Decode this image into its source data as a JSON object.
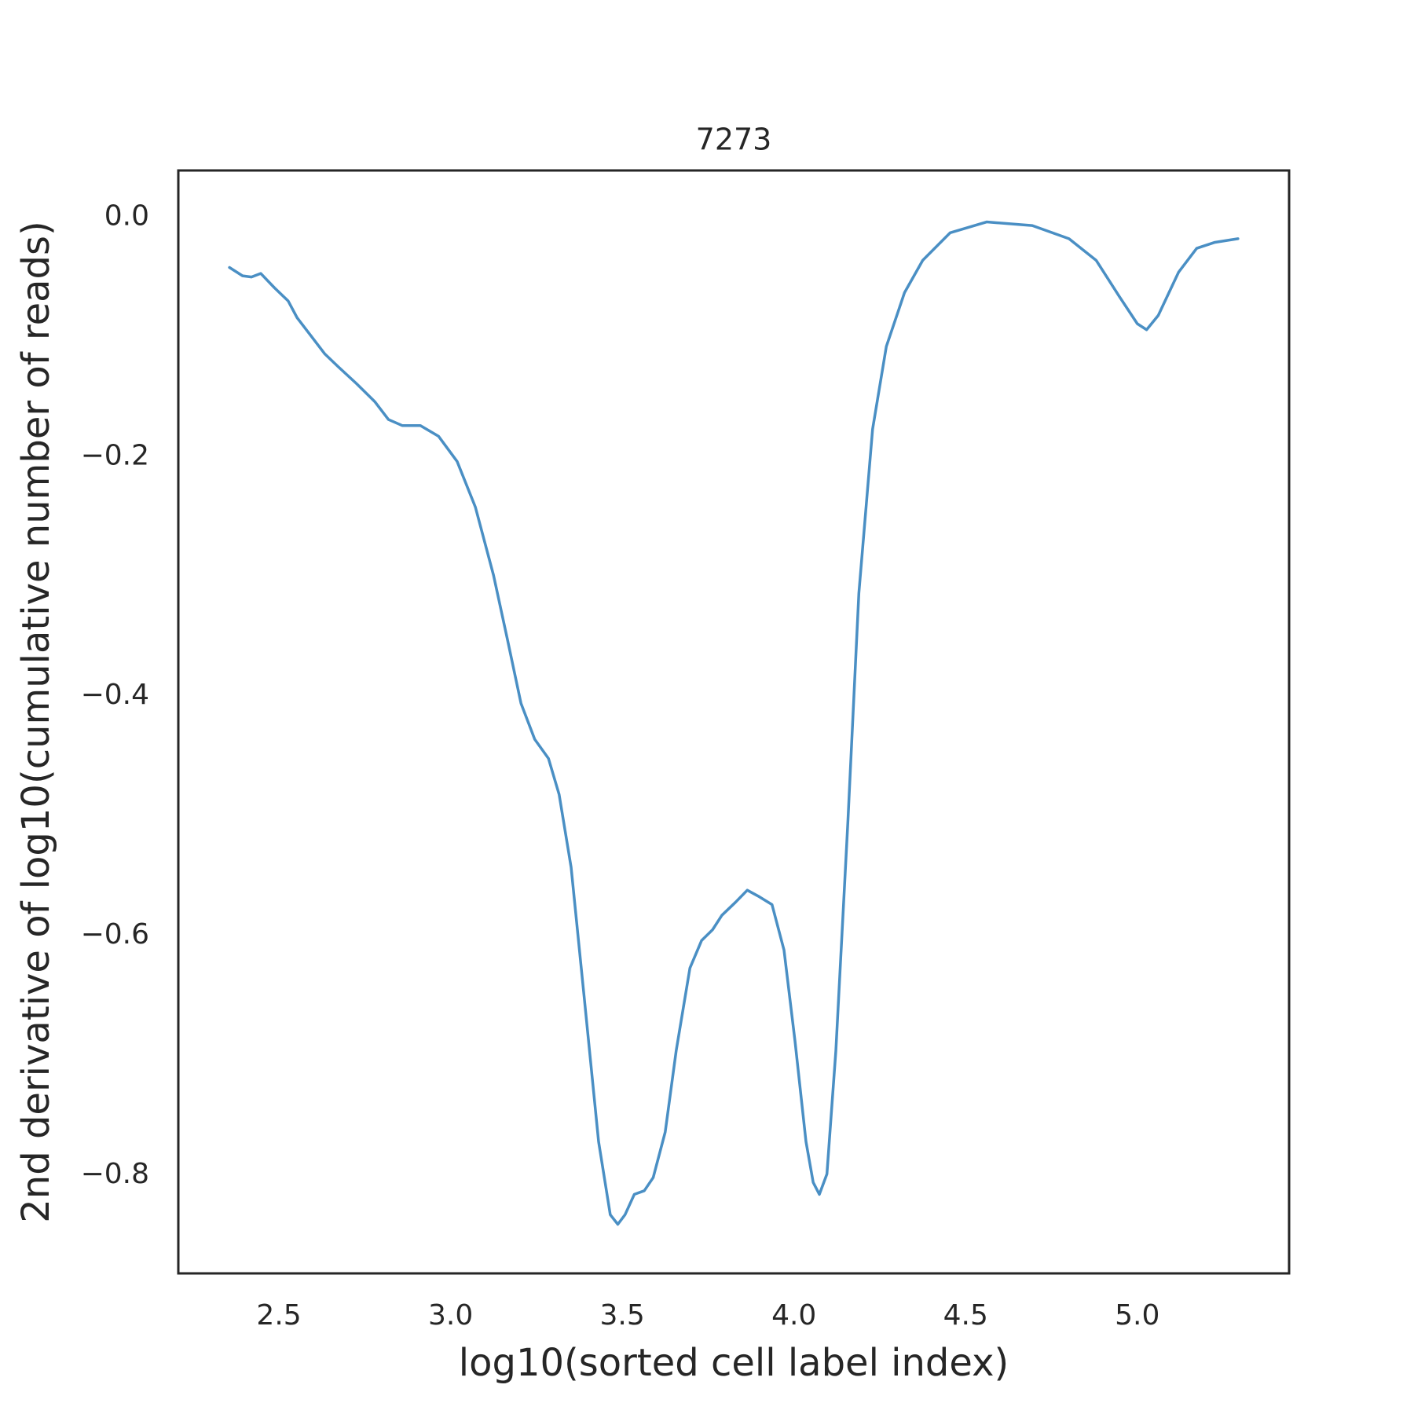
{
  "chart_data": {
    "type": "line",
    "title": "7273",
    "x_label": "log10(sorted cell label index)",
    "y_label": "2nd derivative of log10(cumulative number of reads)",
    "x": [
      2.356,
      2.394,
      2.42,
      2.447,
      2.487,
      2.527,
      2.553,
      2.593,
      2.633,
      2.673,
      2.726,
      2.779,
      2.819,
      2.859,
      2.912,
      2.965,
      3.019,
      3.072,
      3.125,
      3.165,
      3.205,
      3.245,
      3.285,
      3.316,
      3.351,
      3.391,
      3.431,
      3.465,
      3.487,
      3.508,
      3.535,
      3.564,
      3.59,
      3.625,
      3.657,
      3.697,
      3.731,
      3.763,
      3.79,
      3.83,
      3.864,
      3.896,
      3.936,
      3.971,
      4.003,
      4.035,
      4.056,
      4.074,
      4.096,
      4.122,
      4.157,
      4.189,
      4.229,
      4.269,
      4.322,
      4.375,
      4.455,
      4.561,
      4.694,
      4.801,
      4.88,
      4.947,
      5.0,
      5.027,
      5.061,
      5.12,
      5.173,
      5.226,
      5.293
    ],
    "values": [
      -0.042,
      -0.049,
      -0.05,
      -0.047,
      -0.059,
      -0.07,
      -0.084,
      -0.099,
      -0.114,
      -0.125,
      -0.139,
      -0.154,
      -0.169,
      -0.174,
      -0.174,
      -0.183,
      -0.204,
      -0.242,
      -0.299,
      -0.352,
      -0.406,
      -0.436,
      -0.452,
      -0.482,
      -0.543,
      -0.657,
      -0.772,
      -0.833,
      -0.841,
      -0.833,
      -0.816,
      -0.813,
      -0.802,
      -0.764,
      -0.696,
      -0.627,
      -0.604,
      -0.595,
      -0.583,
      -0.572,
      -0.562,
      -0.567,
      -0.574,
      -0.612,
      -0.688,
      -0.772,
      -0.806,
      -0.816,
      -0.799,
      -0.696,
      -0.505,
      -0.314,
      -0.177,
      -0.108,
      -0.063,
      -0.036,
      -0.013,
      -0.004,
      -0.007,
      -0.018,
      -0.036,
      -0.066,
      -0.089,
      -0.094,
      -0.082,
      -0.046,
      -0.026,
      -0.021,
      -0.018
    ],
    "color": "#4a8fc4",
    "xlim": [
      2.207,
      5.442
    ],
    "ylim": [
      -0.882,
      0.039
    ],
    "xticks": [
      2.5,
      {
        "value": 3,
        "label": "3.0"
      },
      3.5,
      {
        "value": 4,
        "label": "4.0"
      },
      4.5,
      {
        "value": 5,
        "label": "5.0"
      }
    ],
    "yticks": [
      {
        "value": 0,
        "label": "0.0"
      },
      {
        "value": -0.2,
        "label": "−0.2"
      },
      {
        "value": -0.4,
        "label": "−0.4"
      },
      {
        "value": -0.6,
        "label": "−0.6"
      },
      {
        "value": -0.8,
        "label": "−0.8"
      }
    ],
    "grid": false
  }
}
